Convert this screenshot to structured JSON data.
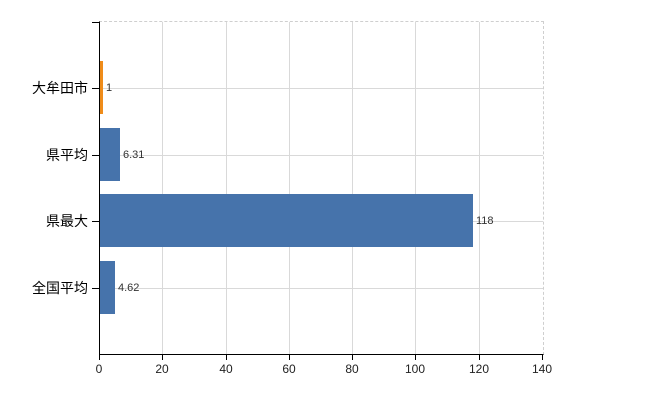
{
  "chart_data": {
    "type": "bar",
    "orientation": "horizontal",
    "title": "",
    "categories": [
      "大牟田市",
      "県平均",
      "県最大",
      "全国平均"
    ],
    "values": [
      1,
      6.31,
      118,
      4.62
    ],
    "value_labels": [
      "1",
      "6.31",
      "118",
      "4.62"
    ],
    "x_ticks": [
      0,
      20,
      40,
      60,
      80,
      100,
      120,
      140
    ],
    "xlim": [
      0,
      140
    ],
    "grid": "on",
    "legend": "none",
    "bar_colors": [
      "#ef8c1a",
      "#4673ab",
      "#4673ab",
      "#4673ab"
    ],
    "colors": {
      "grid": "#d9d9d9",
      "axis": "#000000",
      "value_label": "#333333",
      "x_tick_label": "#222222",
      "category_label": "#000000",
      "background": "#ffffff"
    }
  }
}
